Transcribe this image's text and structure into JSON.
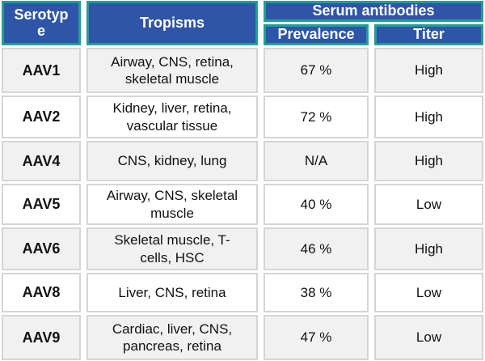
{
  "chart_data": {
    "type": "table",
    "header": {
      "serotype": "Serotype",
      "tropisms": "Tropisms",
      "serum_antibodies_group": "Serum antibodies",
      "prevalence": "Prevalence",
      "titer": "Titer"
    },
    "rows": [
      {
        "serotype": "AAV1",
        "tropisms": "Airway, CNS, retina, skeletal muscle",
        "prevalence": "67 %",
        "titer": "High"
      },
      {
        "serotype": "AAV2",
        "tropisms": "Kidney, liver, retina, vascular tissue",
        "prevalence": "72 %",
        "titer": "High"
      },
      {
        "serotype": "AAV4",
        "tropisms": "CNS, kidney, lung",
        "prevalence": "N/A",
        "titer": "High"
      },
      {
        "serotype": "AAV5",
        "tropisms": "Airway, CNS, skeletal muscle",
        "prevalence": "40 %",
        "titer": "Low"
      },
      {
        "serotype": "AAV6",
        "tropisms": "Skeletal muscle, T-cells, HSC",
        "prevalence": "46 %",
        "titer": "High"
      },
      {
        "serotype": "AAV8",
        "tropisms": "Liver, CNS, retina",
        "prevalence": "38 %",
        "titer": "Low"
      },
      {
        "serotype": "AAV9",
        "tropisms": "Cardiac, liver, CNS, pancreas, retina",
        "prevalence": "47 %",
        "titer": "Low"
      }
    ]
  },
  "colors": {
    "header_fill": "#2e55a8",
    "header_border": "#1fa093",
    "header_text": "#ffffff",
    "row_alt_fill": "#f1f1f1",
    "row_fill": "#ffffff",
    "cell_border": "#d5d5d5",
    "body_text": "#111111"
  }
}
